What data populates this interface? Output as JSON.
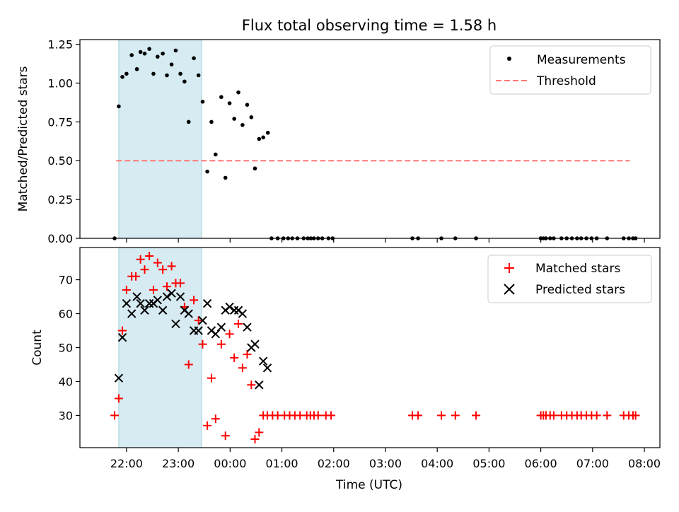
{
  "figure_title": "Flux total observing time = 1.58 h",
  "chart_data": [
    {
      "type": "scatter",
      "ylabel": "Matched/Predicted stars",
      "x_axis": "time_of_day_from_22:00_hours",
      "xlim": [
        -0.9,
        10.3
      ],
      "ylim": [
        0.0,
        1.28
      ],
      "yticks": [
        "0.00",
        "0.25",
        "0.50",
        "0.75",
        "1.00",
        "1.25"
      ],
      "ytick_values": [
        0.0,
        0.25,
        0.5,
        0.75,
        1.0,
        1.25
      ],
      "shaded_span_x": [
        -0.15,
        1.45
      ],
      "threshold": {
        "y": 0.5,
        "x_range": [
          -0.2,
          9.72
        ]
      },
      "legend": {
        "placement": "upper-right",
        "entries": [
          "Measurements",
          "Threshold"
        ]
      },
      "series": [
        {
          "name": "Measurements",
          "points": [
            [
              -0.23,
              0.0
            ],
            [
              -0.15,
              0.85
            ],
            [
              -0.08,
              1.04
            ],
            [
              0.0,
              1.06
            ],
            [
              0.1,
              1.18
            ],
            [
              0.2,
              1.09
            ],
            [
              0.27,
              1.2
            ],
            [
              0.35,
              1.19
            ],
            [
              0.44,
              1.22
            ],
            [
              0.52,
              1.06
            ],
            [
              0.6,
              1.17
            ],
            [
              0.7,
              1.19
            ],
            [
              0.78,
              1.05
            ],
            [
              0.87,
              1.12
            ],
            [
              0.95,
              1.21
            ],
            [
              1.04,
              1.06
            ],
            [
              1.12,
              1.01
            ],
            [
              1.2,
              0.75
            ],
            [
              1.3,
              1.16
            ],
            [
              1.39,
              1.05
            ],
            [
              1.47,
              0.88
            ],
            [
              1.56,
              0.43
            ],
            [
              1.64,
              0.75
            ],
            [
              1.72,
              0.54
            ],
            [
              1.83,
              0.91
            ],
            [
              1.91,
              0.39
            ],
            [
              1.99,
              0.87
            ],
            [
              2.08,
              0.77
            ],
            [
              2.16,
              0.94
            ],
            [
              2.24,
              0.73
            ],
            [
              2.33,
              0.86
            ],
            [
              2.41,
              0.78
            ],
            [
              2.48,
              0.45
            ],
            [
              2.56,
              0.64
            ],
            [
              2.64,
              0.65
            ],
            [
              2.73,
              0.68
            ],
            [
              2.8,
              0.0
            ],
            [
              2.92,
              0.0
            ],
            [
              3.03,
              0.0
            ],
            [
              3.12,
              0.0
            ],
            [
              3.2,
              0.0
            ],
            [
              3.3,
              0.0
            ],
            [
              3.42,
              0.0
            ],
            [
              3.5,
              0.0
            ],
            [
              3.56,
              0.0
            ],
            [
              3.62,
              0.0
            ],
            [
              3.7,
              0.0
            ],
            [
              3.78,
              0.0
            ],
            [
              3.9,
              0.0
            ],
            [
              3.98,
              0.0
            ],
            [
              5.52,
              0.0
            ],
            [
              5.63,
              0.0
            ],
            [
              6.08,
              0.0
            ],
            [
              6.35,
              0.0
            ],
            [
              6.75,
              0.0
            ],
            [
              8.0,
              0.0
            ],
            [
              8.05,
              0.0
            ],
            [
              8.1,
              0.0
            ],
            [
              8.18,
              0.0
            ],
            [
              8.25,
              0.0
            ],
            [
              8.4,
              0.0
            ],
            [
              8.5,
              0.0
            ],
            [
              8.6,
              0.0
            ],
            [
              8.7,
              0.0
            ],
            [
              8.78,
              0.0
            ],
            [
              8.88,
              0.0
            ],
            [
              8.98,
              0.0
            ],
            [
              9.08,
              0.0
            ],
            [
              9.28,
              0.0
            ],
            [
              9.6,
              0.0
            ],
            [
              9.7,
              0.0
            ],
            [
              9.78,
              0.0
            ],
            [
              9.83,
              0.0
            ]
          ]
        }
      ]
    },
    {
      "type": "scatter",
      "ylabel": "Count",
      "xlabel": "Time (UTC)",
      "x_axis": "time_of_day_from_22:00_hours",
      "xlim": [
        -0.9,
        10.3
      ],
      "ylim": [
        20.5,
        79.5
      ],
      "yticks": [
        "30",
        "40",
        "50",
        "60",
        "70"
      ],
      "ytick_values": [
        30,
        40,
        50,
        60,
        70
      ],
      "xticks": [
        "22:00",
        "23:00",
        "00:00",
        "01:00",
        "02:00",
        "03:00",
        "04:00",
        "05:00",
        "06:00",
        "07:00",
        "08:00"
      ],
      "xtick_values": [
        0,
        1,
        2,
        3,
        4,
        5,
        6,
        7,
        8,
        9,
        10
      ],
      "shaded_span_x": [
        -0.15,
        1.45
      ],
      "legend": {
        "placement": "upper-right",
        "entries": [
          "Matched stars",
          "Predicted stars"
        ]
      },
      "series": [
        {
          "name": "Matched stars",
          "color": "#ff0000",
          "points": [
            [
              -0.23,
              30
            ],
            [
              -0.15,
              35
            ],
            [
              -0.08,
              55
            ],
            [
              0.0,
              67
            ],
            [
              0.1,
              71
            ],
            [
              0.18,
              71
            ],
            [
              0.27,
              76
            ],
            [
              0.35,
              73
            ],
            [
              0.44,
              77
            ],
            [
              0.52,
              67
            ],
            [
              0.6,
              75
            ],
            [
              0.7,
              73
            ],
            [
              0.78,
              68
            ],
            [
              0.87,
              74
            ],
            [
              0.95,
              69
            ],
            [
              1.04,
              69
            ],
            [
              1.12,
              62
            ],
            [
              1.2,
              45
            ],
            [
              1.3,
              64
            ],
            [
              1.39,
              58
            ],
            [
              1.47,
              51
            ],
            [
              1.56,
              27
            ],
            [
              1.64,
              41
            ],
            [
              1.72,
              29
            ],
            [
              1.83,
              51
            ],
            [
              1.91,
              24
            ],
            [
              1.99,
              54
            ],
            [
              2.08,
              47
            ],
            [
              2.16,
              57
            ],
            [
              2.24,
              44
            ],
            [
              2.33,
              48
            ],
            [
              2.41,
              39
            ],
            [
              2.48,
              23
            ],
            [
              2.56,
              25
            ],
            [
              2.64,
              30
            ],
            [
              2.72,
              30
            ],
            [
              2.82,
              30
            ],
            [
              2.92,
              30
            ],
            [
              3.05,
              30
            ],
            [
              3.15,
              30
            ],
            [
              3.25,
              30
            ],
            [
              3.35,
              30
            ],
            [
              3.48,
              30
            ],
            [
              3.55,
              30
            ],
            [
              3.62,
              30
            ],
            [
              3.7,
              30
            ],
            [
              3.85,
              30
            ],
            [
              3.95,
              30
            ],
            [
              5.52,
              30
            ],
            [
              5.63,
              30
            ],
            [
              6.08,
              30
            ],
            [
              6.35,
              30
            ],
            [
              6.75,
              30
            ],
            [
              8.0,
              30
            ],
            [
              8.05,
              30
            ],
            [
              8.1,
              30
            ],
            [
              8.18,
              30
            ],
            [
              8.25,
              30
            ],
            [
              8.4,
              30
            ],
            [
              8.5,
              30
            ],
            [
              8.6,
              30
            ],
            [
              8.7,
              30
            ],
            [
              8.78,
              30
            ],
            [
              8.88,
              30
            ],
            [
              8.98,
              30
            ],
            [
              9.08,
              30
            ],
            [
              9.28,
              30
            ],
            [
              9.6,
              30
            ],
            [
              9.7,
              30
            ],
            [
              9.78,
              30
            ],
            [
              9.83,
              30
            ]
          ]
        },
        {
          "name": "Predicted stars",
          "color": "#000000",
          "points": [
            [
              -0.15,
              41
            ],
            [
              -0.08,
              53
            ],
            [
              0.0,
              63
            ],
            [
              0.1,
              60
            ],
            [
              0.2,
              65
            ],
            [
              0.27,
              63
            ],
            [
              0.35,
              61
            ],
            [
              0.44,
              63
            ],
            [
              0.52,
              63
            ],
            [
              0.6,
              64
            ],
            [
              0.7,
              61
            ],
            [
              0.78,
              65
            ],
            [
              0.87,
              66
            ],
            [
              0.95,
              57
            ],
            [
              1.04,
              65
            ],
            [
              1.12,
              61
            ],
            [
              1.2,
              60
            ],
            [
              1.3,
              55
            ],
            [
              1.39,
              55
            ],
            [
              1.47,
              58
            ],
            [
              1.56,
              63
            ],
            [
              1.64,
              55
            ],
            [
              1.72,
              54
            ],
            [
              1.83,
              56
            ],
            [
              1.91,
              61
            ],
            [
              1.99,
              62
            ],
            [
              2.08,
              61
            ],
            [
              2.16,
              61
            ],
            [
              2.24,
              60
            ],
            [
              2.33,
              56
            ],
            [
              2.41,
              50
            ],
            [
              2.48,
              51
            ],
            [
              2.56,
              39
            ],
            [
              2.64,
              46
            ],
            [
              2.72,
              44
            ]
          ]
        }
      ]
    }
  ]
}
